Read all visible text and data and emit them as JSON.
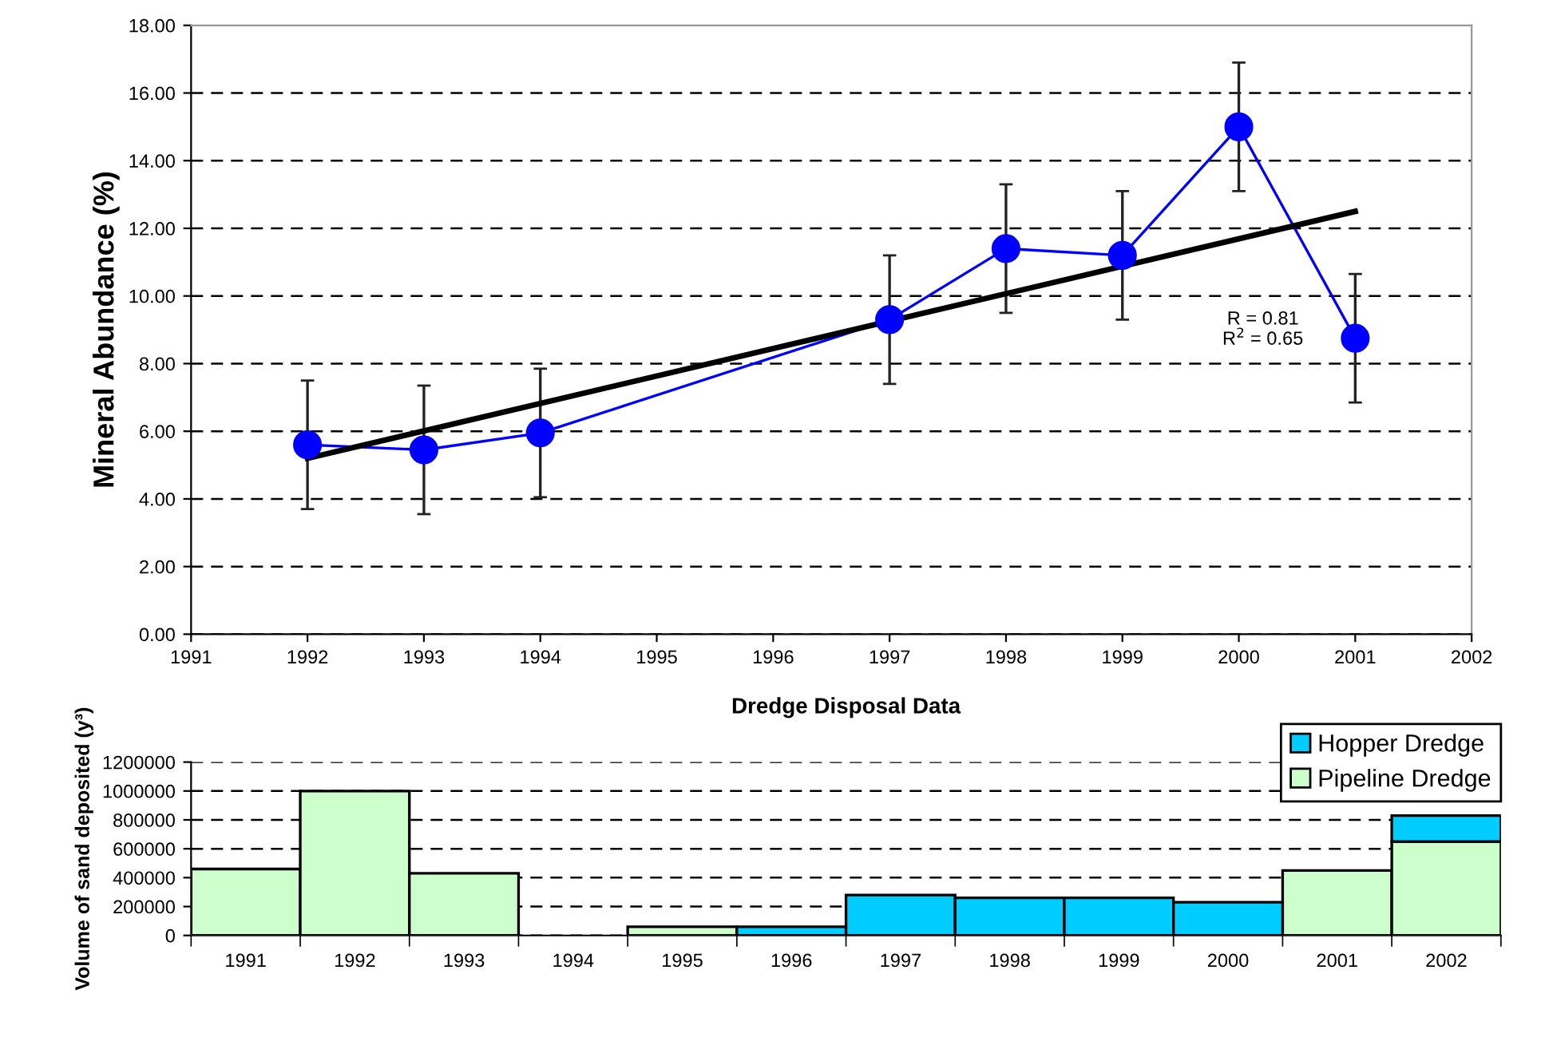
{
  "chart_data": [
    {
      "type": "line",
      "ylabel": "Mineral Abundance (%)",
      "xlim": [
        1991,
        2002
      ],
      "xticks": [
        1991,
        1992,
        1993,
        1994,
        1995,
        1996,
        1997,
        1998,
        1999,
        2000,
        2001,
        2002
      ],
      "ylim": [
        0,
        18
      ],
      "yticks": [
        {
          "value": 0,
          "label": "0.00"
        },
        {
          "value": 2,
          "label": "2.00"
        },
        {
          "value": 4,
          "label": "4.00"
        },
        {
          "value": 6,
          "label": "6.00"
        },
        {
          "value": 8,
          "label": "8.00"
        },
        {
          "value": 10,
          "label": "10.00"
        },
        {
          "value": 12,
          "label": "12.00"
        },
        {
          "value": 14,
          "label": "14.00"
        },
        {
          "value": 16,
          "label": "16.00"
        },
        {
          "value": 18,
          "label": "18.00"
        }
      ],
      "grid": "y",
      "series": [
        {
          "type": "line",
          "color": "#0000ff",
          "marker": "circle",
          "line_style": "solid",
          "x": [
            1992,
            1993,
            1994,
            1997,
            1998,
            1999,
            2000,
            2001
          ],
          "values": [
            5.6,
            5.45,
            5.95,
            9.3,
            11.4,
            11.2,
            15.0,
            8.75
          ],
          "errors": [
            1.9,
            1.9,
            1.9,
            1.9,
            1.9,
            1.9,
            1.9,
            1.9
          ]
        },
        {
          "type": "line",
          "color": "#000000",
          "marker": "none",
          "line_style": "solid",
          "x": [
            1992,
            2001
          ],
          "values": [
            5.2,
            12.5
          ]
        }
      ],
      "annotations": [
        "R = 0.81\nR$^{2}$ = 0.65"
      ]
    },
    {
      "type": "bar",
      "stacked": true,
      "title": "Dredge Disposal Data",
      "ylabel": "Volume of sand deposited (y³)",
      "categories": [
        "1991",
        "1992",
        "1993",
        "1994",
        "1995",
        "1996",
        "1997",
        "1998",
        "1999",
        "2000",
        "2001",
        "2002"
      ],
      "ylim": [
        0,
        1200000
      ],
      "yticks": [
        0,
        200000,
        400000,
        600000,
        800000,
        1000000,
        1200000
      ],
      "grid": "y",
      "legend": "top right",
      "series": [
        {
          "name": "Pipeline Dredge",
          "color": "#ccffcc",
          "values": [
            460000,
            1000000,
            430000,
            null,
            60000,
            null,
            null,
            null,
            null,
            null,
            450000,
            650000
          ]
        },
        {
          "name": "Hopper Dredge",
          "color": "#00ccff",
          "values": [
            null,
            null,
            null,
            null,
            null,
            60000,
            280000,
            260000,
            260000,
            230000,
            null,
            180000
          ]
        }
      ]
    }
  ]
}
